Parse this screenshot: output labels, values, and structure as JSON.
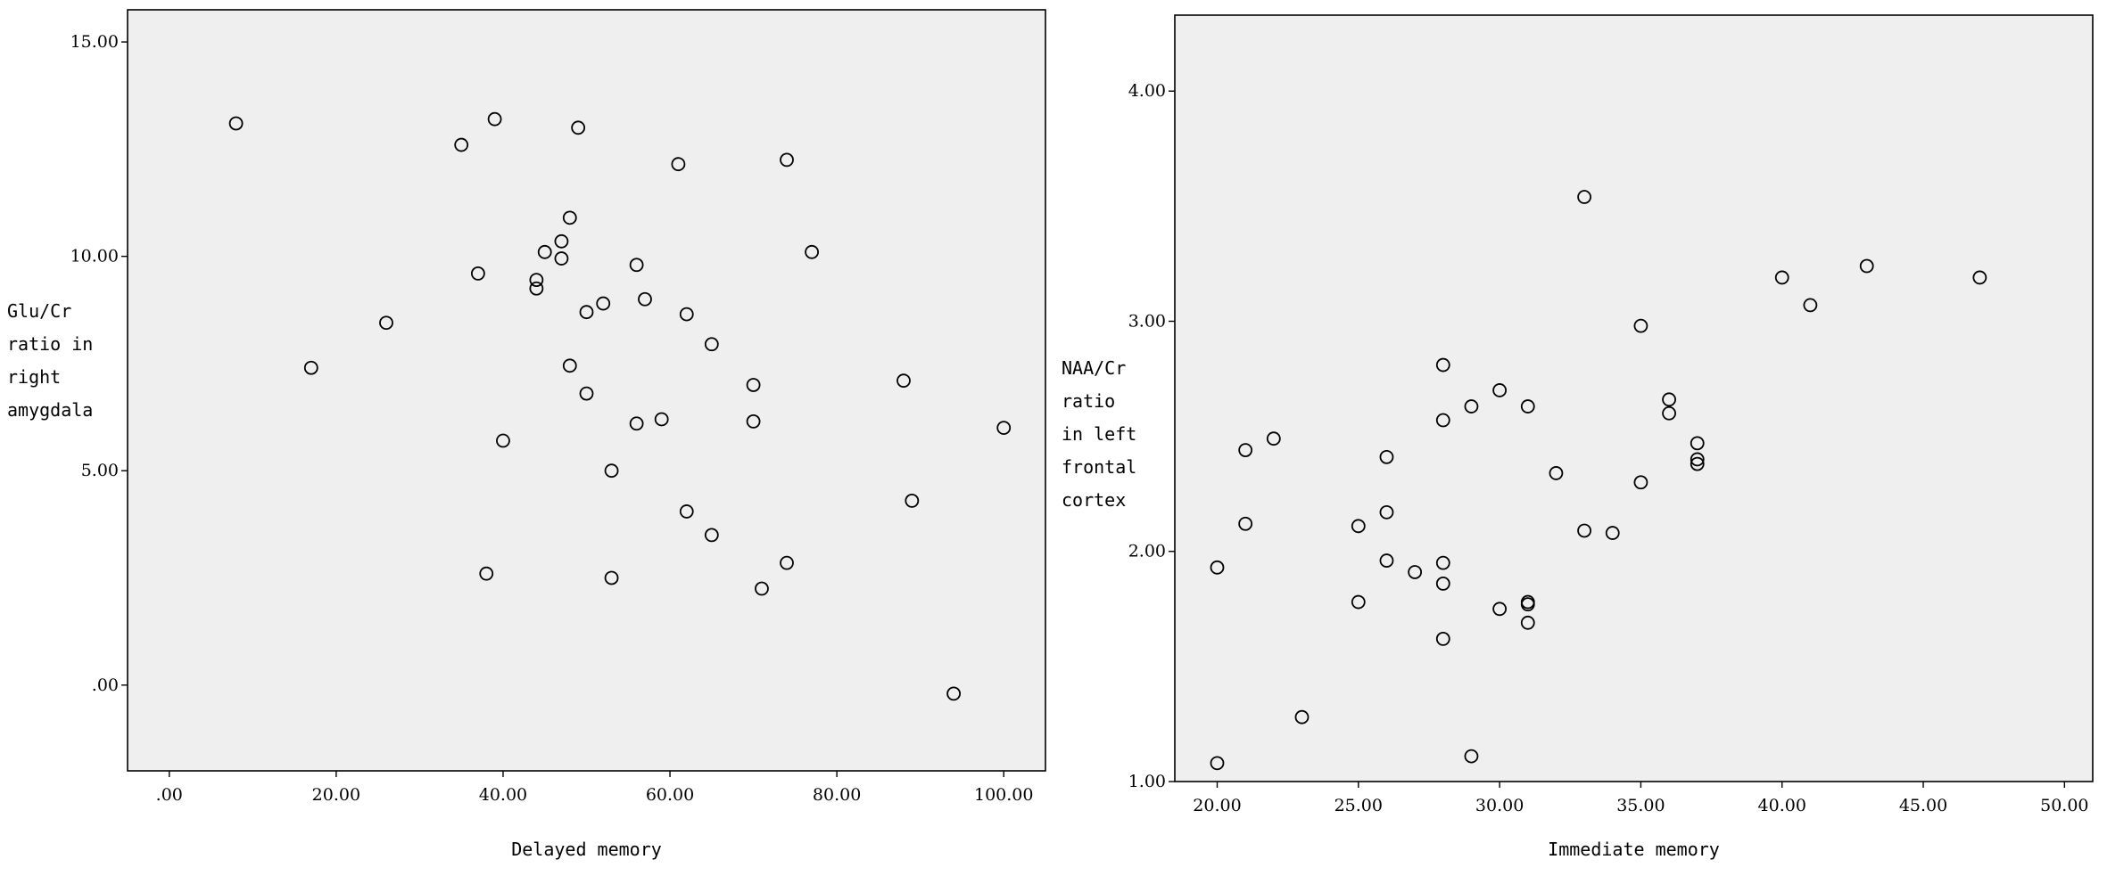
{
  "chart_data": [
    {
      "type": "scatter",
      "xlabel": "Delayed memory",
      "ylabel": [
        "Glu/Cr",
        "ratio in",
        "right",
        "amygdala"
      ],
      "xlim": [
        -5,
        105
      ],
      "ylim": [
        -2,
        15.75
      ],
      "xticks": [
        0,
        20,
        40,
        60,
        80,
        100
      ],
      "xtick_labels": [
        ".00",
        "20.00",
        "40.00",
        "60.00",
        "80.00",
        "100.00"
      ],
      "yticks": [
        0,
        5,
        10,
        15
      ],
      "ytick_labels": [
        ".00",
        "5.00",
        "10.00",
        "15.00"
      ],
      "grid": false,
      "background": "#efefef",
      "points": [
        [
          8,
          13.1
        ],
        [
          17,
          7.4
        ],
        [
          26,
          8.45
        ],
        [
          35,
          12.6
        ],
        [
          37,
          9.6
        ],
        [
          38,
          2.6
        ],
        [
          39,
          13.2
        ],
        [
          40,
          5.7
        ],
        [
          44,
          9.45
        ],
        [
          44,
          9.25
        ],
        [
          45,
          10.1
        ],
        [
          47,
          10.35
        ],
        [
          47,
          9.95
        ],
        [
          48,
          10.9
        ],
        [
          48,
          7.45
        ],
        [
          49,
          13.0
        ],
        [
          50,
          8.7
        ],
        [
          50,
          6.8
        ],
        [
          52,
          8.9
        ],
        [
          53,
          5.0
        ],
        [
          53,
          2.5
        ],
        [
          56,
          9.8
        ],
        [
          56,
          6.1
        ],
        [
          57,
          9.0
        ],
        [
          59,
          6.2
        ],
        [
          61,
          12.15
        ],
        [
          62,
          8.65
        ],
        [
          62,
          4.05
        ],
        [
          65,
          7.95
        ],
        [
          65,
          3.5
        ],
        [
          70,
          7.0
        ],
        [
          70,
          6.15
        ],
        [
          71,
          2.25
        ],
        [
          74,
          12.25
        ],
        [
          74,
          2.85
        ],
        [
          77,
          10.1
        ],
        [
          88,
          7.1
        ],
        [
          89,
          4.3
        ],
        [
          94,
          -0.2
        ],
        [
          100,
          6.0
        ]
      ]
    },
    {
      "type": "scatter",
      "xlabel": "Immediate memory",
      "ylabel": [
        "NAA/Cr",
        "ratio",
        "in left",
        "frontal",
        "cortex"
      ],
      "xlim": [
        18.5,
        51
      ],
      "ylim": [
        1.0,
        4.33
      ],
      "xticks": [
        20,
        25,
        30,
        35,
        40,
        45,
        50
      ],
      "xtick_labels": [
        "20.00",
        "25.00",
        "30.00",
        "35.00",
        "40.00",
        "45.00",
        "50.00"
      ],
      "yticks": [
        1,
        2,
        3,
        4
      ],
      "ytick_labels": [
        "1.00",
        "2.00",
        "3.00",
        "4.00"
      ],
      "grid": false,
      "background": "#efefef",
      "points": [
        [
          20,
          1.93
        ],
        [
          20,
          1.08
        ],
        [
          21,
          2.44
        ],
        [
          21,
          2.12
        ],
        [
          22,
          2.49
        ],
        [
          23,
          1.28
        ],
        [
          25,
          2.11
        ],
        [
          25,
          1.78
        ],
        [
          26,
          2.41
        ],
        [
          26,
          2.17
        ],
        [
          26,
          1.96
        ],
        [
          27,
          1.91
        ],
        [
          28,
          2.81
        ],
        [
          28,
          2.57
        ],
        [
          28,
          1.95
        ],
        [
          28,
          1.86
        ],
        [
          28,
          1.62
        ],
        [
          29,
          2.63
        ],
        [
          29,
          1.11
        ],
        [
          30,
          2.7
        ],
        [
          30,
          1.75
        ],
        [
          31,
          2.63
        ],
        [
          31,
          1.78
        ],
        [
          31,
          1.77
        ],
        [
          31,
          1.69
        ],
        [
          32,
          2.34
        ],
        [
          33,
          3.54
        ],
        [
          33,
          2.09
        ],
        [
          34,
          2.08
        ],
        [
          35,
          2.98
        ],
        [
          35,
          2.3
        ],
        [
          36,
          2.66
        ],
        [
          36,
          2.6
        ],
        [
          37,
          2.47
        ],
        [
          37,
          2.4
        ],
        [
          37,
          2.38
        ],
        [
          40,
          3.19
        ],
        [
          41,
          3.07
        ],
        [
          43,
          3.24
        ],
        [
          47,
          3.19
        ]
      ]
    }
  ]
}
